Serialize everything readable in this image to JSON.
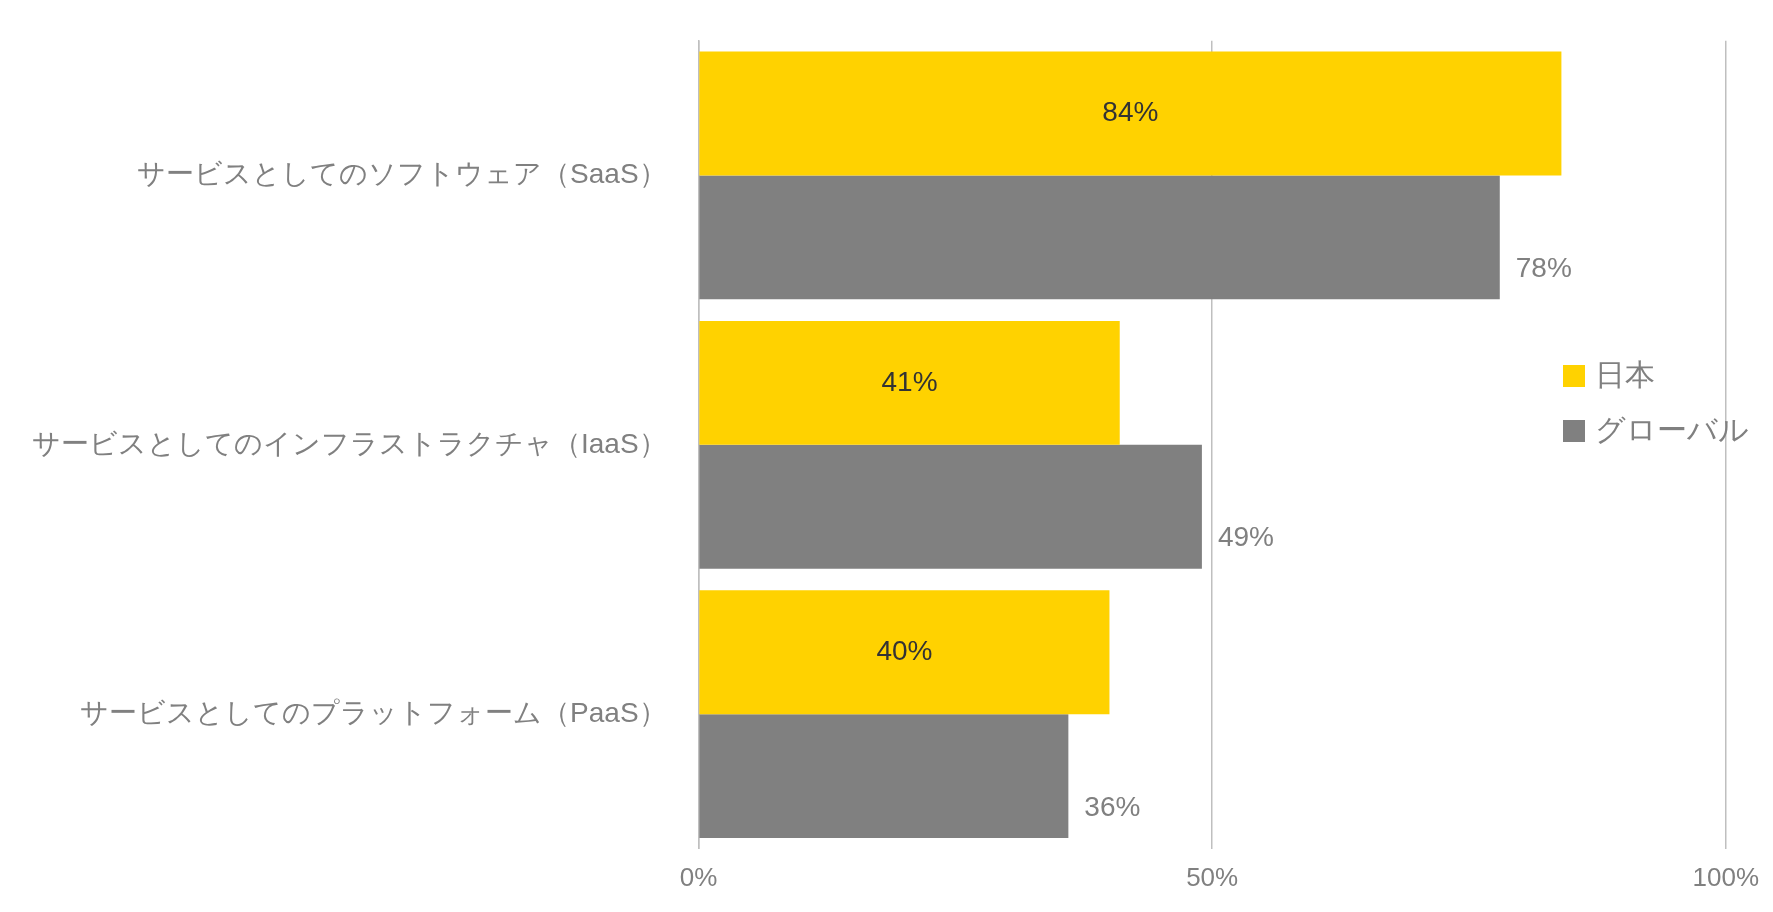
{
  "chart_data": {
    "type": "bar",
    "orientation": "horizontal",
    "categories": [
      "サービスとしてのソフトウェア（SaaS）",
      "サービスとしてのインフラストラクチャ（IaaS）",
      "サービスとしてのプラットフォーム（PaaS）"
    ],
    "series": [
      {
        "name": "日本",
        "color": "#ffd200",
        "values": [
          84,
          41,
          40
        ],
        "value_labels": [
          "84%",
          "41%",
          "40%"
        ]
      },
      {
        "name": "グローバル",
        "color": "#808080",
        "values": [
          78,
          49,
          36
        ],
        "value_labels": [
          "78%",
          "49%",
          "36%"
        ]
      }
    ],
    "xlim": [
      0,
      100
    ],
    "xticks": [
      {
        "value": 0,
        "label": "0%"
      },
      {
        "value": 50,
        "label": "50%"
      },
      {
        "value": 100,
        "label": "100%"
      }
    ],
    "grid": "x",
    "legend": "right"
  }
}
